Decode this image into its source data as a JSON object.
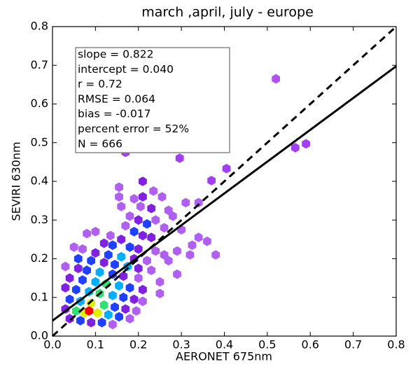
{
  "chart_data": {
    "type": "hexbin",
    "title": "march ,april, july - europe",
    "x_label": "AERONET 675nm",
    "y_label": "SEVIRI 630nm",
    "xlim": [
      0,
      0.8
    ],
    "ylim": [
      0,
      0.8
    ],
    "xticks": [
      {
        "value": 0,
        "label": "0.0"
      },
      0.1,
      0.2,
      0.3,
      0.4,
      0.5,
      0.6,
      0.7,
      0.8
    ],
    "yticks": [
      {
        "value": 0,
        "label": "0.0"
      },
      0.1,
      0.2,
      0.3,
      0.4,
      0.5,
      0.6,
      0.7,
      0.8
    ],
    "annotations": [
      "slope = 0.822",
      "intercept = 0.040",
      "r = 0.72",
      "RMSE = 0.064",
      "bias = -0.017",
      "percent error = 52%",
      "N = 666"
    ],
    "x": [
      0.52,
      0.21,
      0.297,
      0.565,
      0.59,
      0.17,
      0.296,
      0.405,
      0.21,
      0.37,
      0.155,
      0.155,
      0.16,
      0.19,
      0.21,
      0.235,
      0.255,
      0.205,
      0.23,
      0.27,
      0.28,
      0.31,
      0.34,
      0.18,
      0.2,
      0.22,
      0.24,
      0.17,
      0.26,
      0.3,
      0.34,
      0.325,
      0.29,
      0.36,
      0.38,
      0.32,
      0.19,
      0.21,
      0.23,
      0.16,
      0.135,
      0.1,
      0.08,
      0.12,
      0.14,
      0.18,
      0.2,
      0.24,
      0.26,
      0.05,
      0.07,
      0.1,
      0.13,
      0.16,
      0.19,
      0.22,
      0.27,
      0.06,
      0.09,
      0.12,
      0.145,
      0.175,
      0.2,
      0.23,
      0.29,
      0.03,
      0.06,
      0.08,
      0.11,
      0.14,
      0.165,
      0.2,
      0.25,
      0.04,
      0.07,
      0.1,
      0.125,
      0.155,
      0.18,
      0.21,
      0.25,
      0.03,
      0.055,
      0.085,
      0.11,
      0.14,
      0.165,
      0.19,
      0.21,
      0.04,
      0.065,
      0.09,
      0.12,
      0.145,
      0.17,
      0.195,
      0.03,
      0.055,
      0.075,
      0.085,
      0.105,
      0.13,
      0.155,
      0.18,
      0.04,
      0.065,
      0.09,
      0.115,
      0.14
    ],
    "values": [
      0.665,
      0.505,
      0.505,
      0.487,
      0.497,
      0.475,
      0.46,
      0.433,
      0.4,
      0.402,
      0.385,
      0.36,
      0.335,
      0.355,
      0.36,
      0.375,
      0.36,
      0.335,
      0.33,
      0.325,
      0.31,
      0.345,
      0.345,
      0.31,
      0.3,
      0.29,
      0.3,
      0.285,
      0.28,
      0.275,
      0.255,
      0.235,
      0.22,
      0.245,
      0.21,
      0.21,
      0.27,
      0.26,
      0.255,
      0.25,
      0.26,
      0.27,
      0.265,
      0.24,
      0.235,
      0.23,
      0.225,
      0.22,
      0.21,
      0.23,
      0.225,
      0.215,
      0.21,
      0.205,
      0.2,
      0.195,
      0.195,
      0.2,
      0.195,
      0.19,
      0.185,
      0.18,
      0.175,
      0.17,
      0.16,
      0.18,
      0.175,
      0.17,
      0.165,
      0.16,
      0.155,
      0.15,
      0.14,
      0.15,
      0.145,
      0.14,
      0.135,
      0.13,
      0.125,
      0.12,
      0.11,
      0.125,
      0.12,
      0.115,
      0.11,
      0.105,
      0.1,
      0.095,
      0.09,
      0.095,
      0.09,
      0.085,
      0.08,
      0.075,
      0.07,
      0.065,
      0.07,
      0.065,
      0.06,
      0.065,
      0.06,
      0.055,
      0.05,
      0.045,
      0.045,
      0.04,
      0.035,
      0.035,
      0.03
    ],
    "colors": [
      "#b050f0",
      "#e0b0ff",
      "#e0b0ff",
      "#a040f0",
      "#a040f0",
      "#a040f0",
      "#a040f0",
      "#a040f0",
      "#8020e0",
      "#a040f0",
      "#b060f0",
      "#b060f0",
      "#b060f0",
      "#b060f0",
      "#8020e0",
      "#b060f0",
      "#b060f0",
      "#b060f0",
      "#8020e0",
      "#b060f0",
      "#b060f0",
      "#b060f0",
      "#b060f0",
      "#b060f0",
      "#8020e0",
      "#2040ff",
      "#b060f0",
      "#b060f0",
      "#b060f0",
      "#b060f0",
      "#b060f0",
      "#b060f0",
      "#b060f0",
      "#b060f0",
      "#b060f0",
      "#b060f0",
      "#2040ff",
      "#8020e0",
      "#8020e0",
      "#8020e0",
      "#b060f0",
      "#b060f0",
      "#b060f0",
      "#8020e0",
      "#2040ff",
      "#2040ff",
      "#8020e0",
      "#b060f0",
      "#b060f0",
      "#b060f0",
      "#b060f0",
      "#8020e0",
      "#2040ff",
      "#00b0ff",
      "#8020e0",
      "#b060f0",
      "#b060f0",
      "#2040ff",
      "#2040ff",
      "#8020e0",
      "#2040ff",
      "#00b0ff",
      "#8020e0",
      "#b060f0",
      "#b060f0",
      "#b060f0",
      "#8020e0",
      "#2040ff",
      "#00b0ff",
      "#2040ff",
      "#8020e0",
      "#b060f0",
      "#b060f0",
      "#8020e0",
      "#2040ff",
      "#00b0ff",
      "#30e070",
      "#00b0ff",
      "#2040ff",
      "#8020e0",
      "#b060f0",
      "#8020e0",
      "#2040ff",
      "#00b0ff",
      "#30e070",
      "#00b0ff",
      "#2040ff",
      "#8020e0",
      "#b060f0",
      "#2040ff",
      "#00b0ff",
      "#e0f000",
      "#30e070",
      "#2040ff",
      "#8020e0",
      "#b060f0",
      "#8020e0",
      "#30e070",
      "#e0f000",
      "#ff0000",
      "#e0f000",
      "#00b0ff",
      "#2040ff",
      "#b060f0",
      "#8020e0",
      "#2040ff",
      "#8020e0",
      "#2040ff",
      "#b060f0"
    ],
    "lines": [
      {
        "x": [
          0,
          0.8
        ],
        "values": [
          0,
          0.8
        ],
        "dashed": true,
        "color": "#000000"
      },
      {
        "x": [
          0,
          0.8
        ],
        "values": [
          0.04,
          0.6976
        ],
        "dashed": false,
        "color": "#000000"
      }
    ]
  }
}
